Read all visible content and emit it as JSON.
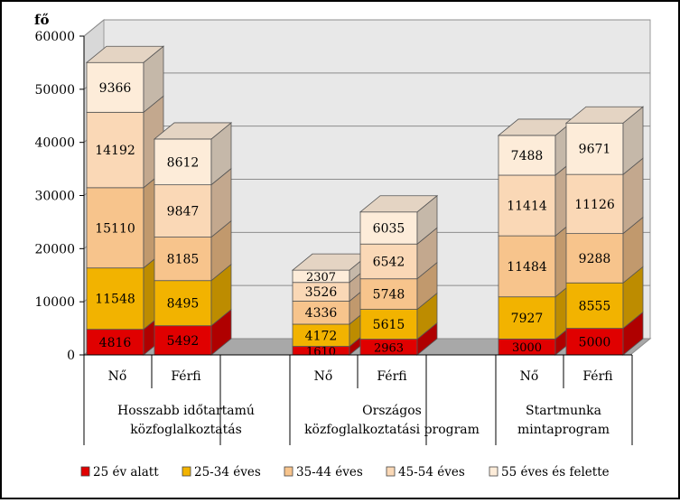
{
  "chart_data": {
    "type": "bar",
    "stacked": true,
    "three_d": true,
    "ylabel": "fő",
    "ylim": [
      0,
      60000
    ],
    "yticks": [
      0,
      10000,
      20000,
      30000,
      40000,
      50000,
      60000
    ],
    "grid": true,
    "legend_position": "bottom",
    "groups": [
      {
        "label": "Hosszabb időtartamú közfoglalkoztatás",
        "label_lines": [
          "Hosszabb időtartamú",
          "közfoglalkoztatás"
        ]
      },
      {
        "label": "Országos közfoglalkoztatási program",
        "label_lines": [
          "Országos",
          "közfoglalkoztatási program"
        ]
      },
      {
        "label": "Startmunka mintaprogram",
        "label_lines": [
          "Startmunka",
          "mintaprogram"
        ]
      }
    ],
    "categories": [
      "Nő",
      "Férfi",
      "Nő",
      "Férfi",
      "Nő",
      "Férfi"
    ],
    "category_group": [
      0,
      0,
      1,
      1,
      2,
      2
    ],
    "series": [
      {
        "name": "25 év alatt",
        "color": "#e00000",
        "values": [
          4816,
          5492,
          1610,
          2963,
          3000,
          5000
        ]
      },
      {
        "name": "25-34 éves",
        "color": "#f2b300",
        "values": [
          11548,
          8495,
          4172,
          5615,
          7927,
          8555
        ]
      },
      {
        "name": "35-44 éves",
        "color": "#f7c48c",
        "values": [
          15110,
          8185,
          4336,
          5748,
          11484,
          9288
        ]
      },
      {
        "name": "45-54 éves",
        "color": "#fad8b6",
        "values": [
          14192,
          9847,
          3526,
          6542,
          11414,
          11126
        ]
      },
      {
        "name": "55 éves és felette",
        "color": "#fdecd9",
        "values": [
          9366,
          8612,
          2307,
          6035,
          7488,
          9671
        ]
      }
    ]
  }
}
